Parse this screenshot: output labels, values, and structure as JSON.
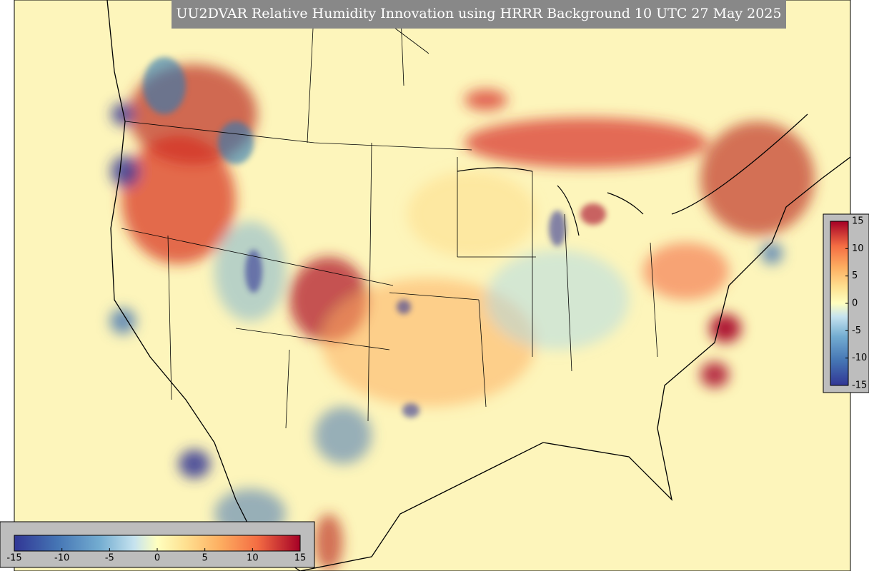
{
  "title": "UU2DVAR Relative Humidity Innovation using HRRR Background 10 UTC 27 May 2025",
  "colorbars": [
    {
      "orientation": "horizontal",
      "lim": [
        -15,
        15
      ],
      "ticks": [
        -15,
        -10,
        -5,
        0,
        5,
        10,
        15
      ]
    },
    {
      "orientation": "vertical",
      "lim": [
        -15,
        15
      ],
      "ticks": [
        -15,
        -10,
        -5,
        0,
        5,
        10,
        15
      ]
    }
  ]
}
